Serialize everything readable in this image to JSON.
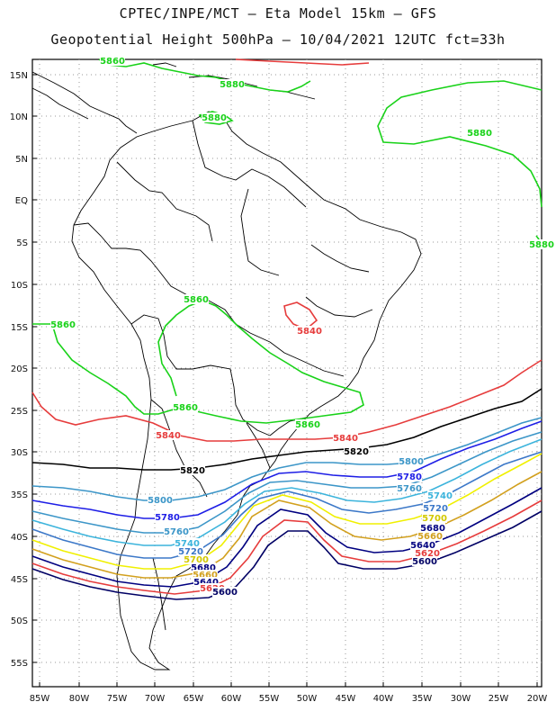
{
  "title_line1": "CPTEC/INPE/MCT –  Eta Model 15km – GFS",
  "title_line2": "Geopotential Height 500hPa – 10/04/2021 12UTC fct=33h",
  "axes": {
    "lat_labels": [
      "15N",
      "10N",
      "5N",
      "EQ",
      "5S",
      "10S",
      "15S",
      "20S",
      "25S",
      "30S",
      "35S",
      "40S",
      "45S",
      "50S",
      "55S"
    ],
    "lon_labels": [
      "85W",
      "80W",
      "75W",
      "70W",
      "65W",
      "60W",
      "55W",
      "50W",
      "45W",
      "40W",
      "35W",
      "30W",
      "25W",
      "20W"
    ]
  },
  "colors": {
    "c5880": "#19d219",
    "c5860": "#19d219",
    "c5840": "#e63c3c",
    "c5820": "#000000",
    "c5800": "#3c96c8",
    "c5780": "#1e1ee6",
    "c5760": "#3c96c8",
    "c5740": "#3cb4dc",
    "c5720": "#3c78c8",
    "c5700": "#f0f000",
    "c5680": "#d2a01e",
    "c5660": "#e65a3c",
    "c5640": "#000080",
    "c5620": "#e63c3c",
    "c5600": "#000064"
  },
  "contour_labels": [
    {
      "text": "5860",
      "color": "#19d219"
    },
    {
      "text": "5880",
      "color": "#19d219"
    },
    {
      "text": "5880",
      "color": "#19d219"
    },
    {
      "text": "5880",
      "color": "#19d219"
    },
    {
      "text": "5880",
      "color": "#19d219"
    },
    {
      "text": "5860",
      "color": "#19d219"
    },
    {
      "text": "5860",
      "color": "#19d219"
    },
    {
      "text": "5860",
      "color": "#19d219"
    },
    {
      "text": "5860",
      "color": "#19d219"
    },
    {
      "text": "5840",
      "color": "#e63c3c"
    },
    {
      "text": "5840",
      "color": "#e63c3c"
    },
    {
      "text": "5840",
      "color": "#e63c3c"
    },
    {
      "text": "5820",
      "color": "#000000"
    },
    {
      "text": "5820",
      "color": "#000000"
    },
    {
      "text": "5800",
      "color": "#3c96c8"
    },
    {
      "text": "5800",
      "color": "#3c96c8"
    },
    {
      "text": "5780",
      "color": "#1e1ee6"
    },
    {
      "text": "5780",
      "color": "#1e1ee6"
    },
    {
      "text": "5760",
      "color": "#3c96c8"
    },
    {
      "text": "5760",
      "color": "#3c96c8"
    },
    {
      "text": "5740",
      "color": "#3cb4dc"
    },
    {
      "text": "5740",
      "color": "#3cb4dc"
    },
    {
      "text": "5720",
      "color": "#3c78c8"
    },
    {
      "text": "5720",
      "color": "#3c78c8"
    },
    {
      "text": "5700",
      "color": "#d2c800"
    },
    {
      "text": "5700",
      "color": "#d2c800"
    },
    {
      "text": "5680",
      "color": "#000080"
    },
    {
      "text": "5680",
      "color": "#000080"
    },
    {
      "text": "5660",
      "color": "#d2a01e"
    },
    {
      "text": "5660",
      "color": "#d2a01e"
    },
    {
      "text": "5640",
      "color": "#000080"
    },
    {
      "text": "5640",
      "color": "#000080"
    },
    {
      "text": "5620",
      "color": "#e63c3c"
    },
    {
      "text": "5620",
      "color": "#e63c3c"
    },
    {
      "text": "5600",
      "color": "#000064"
    },
    {
      "text": "5600",
      "color": "#000064"
    }
  ]
}
